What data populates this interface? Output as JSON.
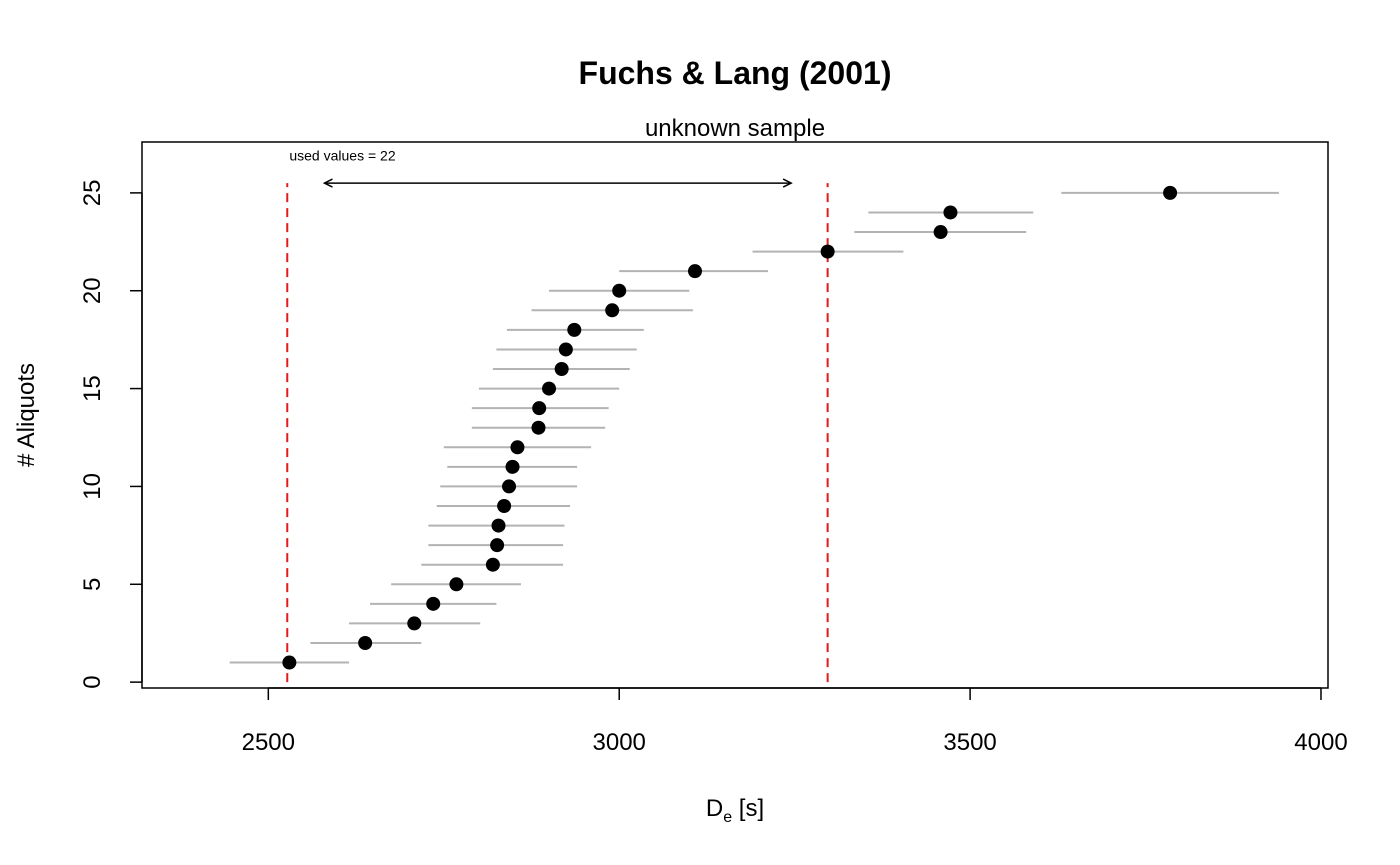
{
  "chart_data": {
    "type": "scatter",
    "title": "Fuchs & Lang (2001)",
    "subtitle": "unknown sample",
    "xlabel_main": "D",
    "xlabel_sub": "e",
    "xlabel_unit": " [s]",
    "ylabel": "# Aliquots",
    "xlim": [
      2320,
      4010
    ],
    "ylim": [
      -0.3,
      27.6
    ],
    "x_ticks": [
      2500,
      3000,
      3500,
      4000
    ],
    "y_ticks": [
      0,
      5,
      10,
      15,
      20,
      25
    ],
    "grid": false,
    "points": [
      {
        "aliquot": 1,
        "de": 2530,
        "de_min": 2445,
        "de_max": 2615
      },
      {
        "aliquot": 2,
        "de": 2638,
        "de_min": 2560,
        "de_max": 2718
      },
      {
        "aliquot": 3,
        "de": 2708,
        "de_min": 2615,
        "de_max": 2802
      },
      {
        "aliquot": 4,
        "de": 2735,
        "de_min": 2645,
        "de_max": 2825
      },
      {
        "aliquot": 5,
        "de": 2768,
        "de_min": 2675,
        "de_max": 2860
      },
      {
        "aliquot": 6,
        "de": 2820,
        "de_min": 2718,
        "de_max": 2920
      },
      {
        "aliquot": 7,
        "de": 2826,
        "de_min": 2728,
        "de_max": 2920
      },
      {
        "aliquot": 8,
        "de": 2828,
        "de_min": 2728,
        "de_max": 2922
      },
      {
        "aliquot": 9,
        "de": 2836,
        "de_min": 2740,
        "de_max": 2930
      },
      {
        "aliquot": 10,
        "de": 2843,
        "de_min": 2745,
        "de_max": 2940
      },
      {
        "aliquot": 11,
        "de": 2848,
        "de_min": 2755,
        "de_max": 2940
      },
      {
        "aliquot": 12,
        "de": 2855,
        "de_min": 2750,
        "de_max": 2960
      },
      {
        "aliquot": 13,
        "de": 2885,
        "de_min": 2790,
        "de_max": 2980
      },
      {
        "aliquot": 14,
        "de": 2886,
        "de_min": 2790,
        "de_max": 2985
      },
      {
        "aliquot": 15,
        "de": 2900,
        "de_min": 2800,
        "de_max": 3000
      },
      {
        "aliquot": 16,
        "de": 2918,
        "de_min": 2820,
        "de_max": 3015
      },
      {
        "aliquot": 17,
        "de": 2924,
        "de_min": 2825,
        "de_max": 3025
      },
      {
        "aliquot": 18,
        "de": 2936,
        "de_min": 2840,
        "de_max": 3035
      },
      {
        "aliquot": 19,
        "de": 2990,
        "de_min": 2875,
        "de_max": 3105
      },
      {
        "aliquot": 20,
        "de": 3000,
        "de_min": 2900,
        "de_max": 3100
      },
      {
        "aliquot": 21,
        "de": 3108,
        "de_min": 3000,
        "de_max": 3212
      },
      {
        "aliquot": 22,
        "de": 3297,
        "de_min": 3190,
        "de_max": 3405
      },
      {
        "aliquot": 23,
        "de": 3458,
        "de_min": 3335,
        "de_max": 3580
      },
      {
        "aliquot": 24,
        "de": 3472,
        "de_min": 3355,
        "de_max": 3590
      },
      {
        "aliquot": 25,
        "de": 3785,
        "de_min": 3630,
        "de_max": 3940
      }
    ],
    "vlines": [
      2527,
      3297
    ],
    "vline_ymax": 25.5,
    "annotation": {
      "text": "used values =  22",
      "x": 2530,
      "y": 26.9,
      "arrow_from": 2580,
      "arrow_to": 3245,
      "arrow_y": 25.5
    },
    "colors": {
      "points": "#000000",
      "error_bars": "#b3b3b3",
      "vlines": "#e31a1c",
      "axes": "#000000"
    }
  }
}
